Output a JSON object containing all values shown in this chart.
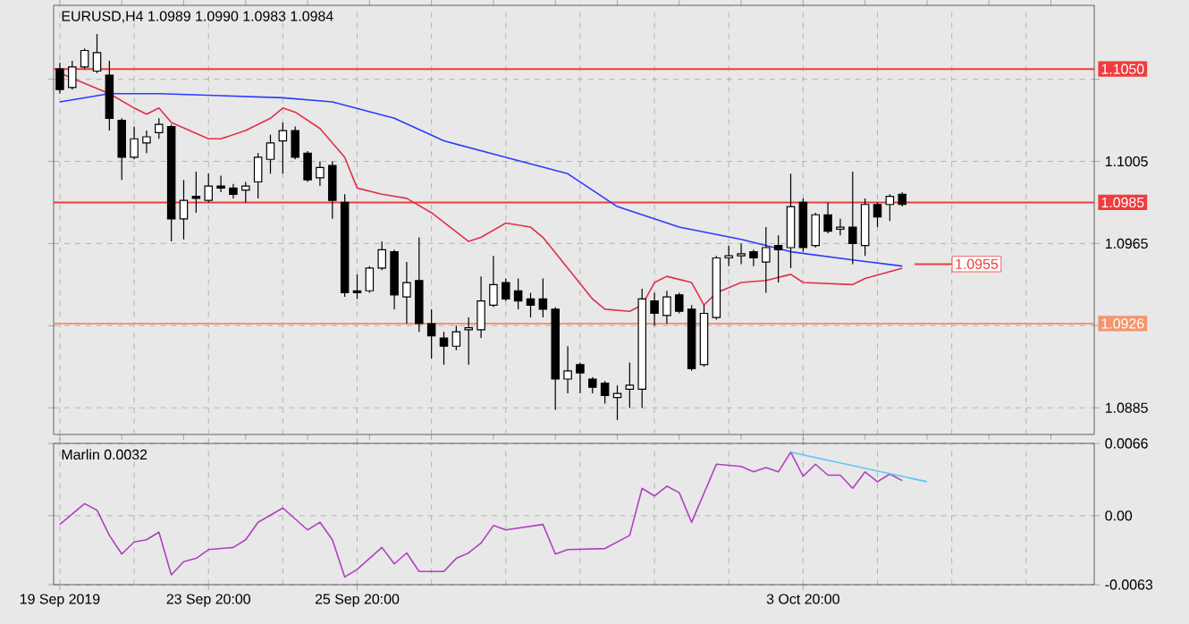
{
  "chart_data": [
    {
      "type": "candlestick",
      "title": "EURUSD,H4 1.0989 1.0990 1.0983 1.0984",
      "categories": [
        null,
        null,
        null,
        null,
        null,
        null,
        null,
        null,
        null,
        null,
        null,
        null,
        null,
        null,
        null,
        null,
        null,
        null,
        null,
        null,
        null,
        null,
        null,
        null,
        null,
        null,
        null,
        null,
        null,
        null,
        null,
        null,
        null,
        null,
        null,
        null,
        null,
        null,
        null,
        null,
        null,
        null,
        null,
        null,
        null,
        null,
        null,
        null,
        null,
        null,
        null,
        null,
        null,
        null,
        null,
        null,
        null,
        null,
        null,
        null,
        null,
        null,
        null,
        null,
        null,
        null,
        null,
        null,
        null,
        null,
        null,
        null,
        null,
        null,
        null,
        null,
        null,
        null,
        null,
        null,
        null,
        null,
        null,
        null
      ],
      "ohlc": [
        [
          1.105,
          1.1053,
          1.1038,
          1.104
        ],
        [
          1.1041,
          1.1054,
          1.104,
          1.1051
        ],
        [
          1.1051,
          1.106,
          1.105,
          1.1059
        ],
        [
          1.1049,
          1.1067,
          1.1048,
          1.1058
        ],
        [
          1.1047,
          1.1054,
          1.102,
          1.1026
        ],
        [
          1.1025,
          1.1026,
          1.0996,
          1.1007
        ],
        [
          1.1007,
          1.1022,
          1.1006,
          1.1016
        ],
        [
          1.1014,
          1.102,
          1.1009,
          1.1017
        ],
        [
          1.1019,
          1.1026,
          1.1016,
          1.1023
        ],
        [
          1.1022,
          1.1023,
          1.0966,
          1.0977
        ],
        [
          1.0977,
          1.0996,
          1.0967,
          1.0986
        ],
        [
          1.0988,
          1.1,
          1.098,
          1.0987
        ],
        [
          1.0986,
          1.0999,
          1.0985,
          1.0993
        ],
        [
          1.0993,
          1.0998,
          1.099,
          1.0992
        ],
        [
          1.0992,
          1.0994,
          1.0987,
          1.0989
        ],
        [
          1.0991,
          1.0995,
          1.0985,
          1.0993
        ],
        [
          1.0995,
          1.1009,
          1.0987,
          1.1007
        ],
        [
          1.1006,
          1.1018,
          1.0999,
          1.1014
        ],
        [
          1.1015,
          1.1024,
          1.0999,
          1.102
        ],
        [
          1.102,
          1.1022,
          1.1006,
          1.1007
        ],
        [
          1.1009,
          1.101,
          1.0995,
          1.0996
        ],
        [
          1.0997,
          1.1005,
          1.0993,
          1.1002
        ],
        [
          1.1003,
          1.1005,
          1.0977,
          1.0986
        ],
        [
          1.0985,
          1.0989,
          1.0939,
          1.0941
        ],
        [
          1.0942,
          1.095,
          1.0938,
          1.0941
        ],
        [
          1.0942,
          1.0954,
          1.0941,
          1.0953
        ],
        [
          1.0953,
          1.0966,
          1.0952,
          1.0962
        ],
        [
          1.0961,
          1.0962,
          1.0933,
          1.094
        ],
        [
          1.0939,
          1.0956,
          1.0926,
          1.0946
        ],
        [
          1.0947,
          1.0968,
          1.0922,
          1.0926
        ],
        [
          1.0926,
          1.0933,
          1.0909,
          1.092
        ],
        [
          1.0919,
          1.0922,
          1.0906,
          1.0915
        ],
        [
          1.0915,
          1.0925,
          1.0913,
          1.0922
        ],
        [
          1.0923,
          1.0929,
          1.0906,
          1.0924
        ],
        [
          1.0923,
          1.0949,
          1.0919,
          1.0937
        ],
        [
          1.0935,
          1.0959,
          1.0934,
          1.0945
        ],
        [
          1.0946,
          1.0948,
          1.0937,
          1.0938
        ],
        [
          1.0942,
          1.0948,
          1.0933,
          1.0937
        ],
        [
          1.0938,
          1.0941,
          1.0929,
          1.0935
        ],
        [
          1.0938,
          1.0948,
          1.0929,
          1.0933
        ],
        [
          1.0933,
          1.0934,
          1.0884,
          1.0899
        ],
        [
          1.0899,
          1.0915,
          1.0892,
          1.0903
        ],
        [
          1.0906,
          1.0907,
          1.0892,
          1.0902
        ],
        [
          1.0899,
          1.09,
          1.0892,
          1.0895
        ],
        [
          1.0897,
          1.0898,
          1.0887,
          1.0891
        ],
        [
          1.089,
          1.0896,
          1.0879,
          1.0892
        ],
        [
          1.0894,
          1.0907,
          1.0885,
          1.0896
        ],
        [
          1.0894,
          1.0943,
          1.0885,
          1.0938
        ],
        [
          1.0937,
          1.0941,
          1.0925,
          1.0931
        ],
        [
          1.093,
          1.0942,
          1.0926,
          1.0939
        ],
        [
          1.094,
          1.0941,
          1.0931,
          1.0932
        ],
        [
          1.0933,
          1.0935,
          1.0903,
          1.0904
        ],
        [
          1.0906,
          1.0935,
          1.0905,
          1.0931
        ],
        [
          1.0929,
          1.0959,
          1.0928,
          1.0958
        ],
        [
          1.0958,
          1.0964,
          1.0954,
          1.0959
        ],
        [
          1.0959,
          1.0965,
          1.0955,
          1.096
        ],
        [
          1.0961,
          1.0962,
          1.0954,
          1.0958
        ],
        [
          1.0956,
          1.0973,
          1.0941,
          1.0963
        ],
        [
          1.0964,
          1.0969,
          1.0946,
          1.0962
        ],
        [
          1.0963,
          1.0999,
          1.0953,
          1.0983
        ],
        [
          1.0985,
          1.0987,
          1.0961,
          1.0963
        ],
        [
          1.0964,
          1.098,
          1.0963,
          1.0979
        ],
        [
          1.0979,
          1.0985,
          1.097,
          1.0971
        ],
        [
          1.0972,
          1.0977,
          1.0969,
          1.0973
        ],
        [
          1.0973,
          1.1,
          1.0955,
          1.0965
        ],
        [
          1.0964,
          1.0987,
          1.0959,
          1.0984
        ],
        [
          1.0984,
          1.0985,
          1.0973,
          1.0978
        ],
        [
          1.0984,
          1.0989,
          1.0976,
          1.0988
        ],
        [
          1.0989,
          1.099,
          1.0983,
          1.0984
        ],
        null,
        null,
        null,
        null,
        null,
        null,
        null,
        null,
        null,
        null,
        null,
        null,
        null,
        null,
        null
      ],
      "series": [
        {
          "type": "line",
          "color": "#e0304a",
          "values": [
            1.1048,
            null,
            null,
            null,
            1.1038,
            null,
            1.1031,
            1.1028,
            1.1031,
            1.1024,
            null,
            null,
            1.1016,
            1.1016,
            null,
            1.102,
            null,
            1.1026,
            1.1031,
            1.1029,
            null,
            1.1021,
            null,
            1.1007,
            1.0992,
            null,
            1.0989,
            null,
            1.0987,
            null,
            1.098,
            null,
            null,
            1.0966,
            1.0968,
            null,
            1.0975,
            null,
            1.0973,
            1.0968,
            null,
            1.0953,
            null,
            1.0938,
            1.0933,
            null,
            1.0932,
            1.0935,
            1.0946,
            1.0949,
            null,
            1.0946,
            1.0935,
            1.0941,
            null,
            1.0946,
            null,
            1.0947,
            null,
            1.095,
            1.0946,
            null,
            null,
            null,
            1.0945,
            1.0948,
            null,
            null,
            1.0953,
            null,
            null,
            null,
            null,
            null,
            null,
            null,
            null,
            null,
            null,
            null,
            null,
            null,
            null,
            null
          ]
        },
        {
          "type": "line",
          "color": "#2b3bff",
          "values": [
            1.1034,
            null,
            null,
            null,
            1.1038,
            null,
            null,
            null,
            1.1038,
            null,
            null,
            null,
            null,
            1.1037,
            null,
            null,
            null,
            null,
            1.1036,
            null,
            null,
            null,
            1.1034,
            null,
            null,
            null,
            null,
            1.1026,
            null,
            null,
            null,
            1.1015,
            null,
            null,
            null,
            null,
            1.1007,
            null,
            null,
            null,
            null,
            1.0999,
            null,
            null,
            null,
            1.0983,
            null,
            null,
            null,
            null,
            1.0973,
            null,
            null,
            null,
            null,
            1.0967,
            null,
            null,
            null,
            1.0961,
            null,
            null,
            null,
            null,
            1.0957,
            null,
            null,
            null,
            1.0954,
            null,
            null,
            null,
            null,
            null,
            null,
            null,
            null,
            null,
            null,
            null,
            null,
            null,
            null,
            null
          ]
        }
      ],
      "ylim": [
        1.0872,
        1.1081
      ],
      "yticks": [
        {
          "value": 1.1045,
          "label": null
        },
        1.1005,
        1.0965,
        {
          "value": 1.0925,
          "label": null
        },
        1.0885
      ],
      "grid": true,
      "ref_lines": [
        {
          "axis": "y",
          "value": 1.105,
          "label": "1.1050",
          "color": "#f03c3c"
        },
        {
          "axis": "y",
          "value": 1.0985,
          "label": "1.0985",
          "color": "#f03c3c"
        },
        {
          "axis": "y",
          "value": 1.0926,
          "label": "1.0926",
          "color": "#f5956e"
        }
      ],
      "annotations": [
        {
          "text": "1.0955",
          "y": 1.0955
        }
      ]
    },
    {
      "type": "line",
      "title": "Marlin 0.0032",
      "categories": [
        "19 Sep 2019",
        null,
        null,
        null,
        null,
        null,
        null,
        null,
        null,
        null,
        null,
        null,
        "23 Sep 20:00",
        null,
        null,
        null,
        null,
        null,
        null,
        null,
        null,
        null,
        null,
        null,
        "25 Sep 20:00",
        null,
        null,
        null,
        null,
        null,
        null,
        null,
        null,
        null,
        null,
        null,
        null,
        null,
        null,
        null,
        null,
        null,
        null,
        null,
        null,
        null,
        null,
        null,
        null,
        null,
        null,
        null,
        null,
        null,
        null,
        null,
        null,
        null,
        null,
        null,
        "3 Oct 20:00",
        null,
        null,
        null,
        null,
        null,
        null,
        null,
        null,
        null,
        null,
        null,
        null,
        null,
        null,
        null,
        null,
        null,
        null,
        null,
        null,
        null,
        null,
        null
      ],
      "series": [
        {
          "color": "#b040c0",
          "values": [
            -0.0008,
            null,
            0.0011,
            0.0005,
            -0.0018,
            -0.0035,
            -0.0024,
            -0.0022,
            -0.0015,
            -0.0054,
            -0.0042,
            -0.0039,
            -0.0031,
            null,
            -0.0029,
            -0.0022,
            -0.0006,
            null,
            0.0007,
            null,
            -0.0013,
            -0.0006,
            -0.0022,
            -0.0056,
            -0.0049,
            null,
            -0.0029,
            -0.0044,
            -0.0034,
            -0.0051,
            null,
            -0.0051,
            -0.0039,
            -0.0034,
            -0.0025,
            -0.0009,
            -0.0013,
            null,
            null,
            -0.0008,
            -0.0035,
            -0.0031,
            null,
            null,
            -0.003,
            null,
            -0.0018,
            0.0025,
            0.0018,
            0.0027,
            0.0021,
            -0.0006,
            null,
            0.0047,
            null,
            0.0045,
            0.004,
            0.0044,
            0.004,
            0.0058,
            0.0036,
            0.0047,
            0.0037,
            0.0037,
            0.0025,
            0.004,
            0.0031,
            0.0038,
            0.0032,
            null,
            null,
            null,
            null,
            null,
            null,
            null,
            null,
            null,
            null,
            null,
            null,
            null,
            null,
            null
          ]
        },
        {
          "color": "#5ac8f5",
          "values": [
            null,
            null,
            null,
            null,
            null,
            null,
            null,
            null,
            null,
            null,
            null,
            null,
            null,
            null,
            null,
            null,
            null,
            null,
            null,
            null,
            null,
            null,
            null,
            null,
            null,
            null,
            null,
            null,
            null,
            null,
            null,
            null,
            null,
            null,
            null,
            null,
            null,
            null,
            null,
            null,
            null,
            null,
            null,
            null,
            null,
            null,
            null,
            null,
            null,
            null,
            null,
            null,
            null,
            null,
            null,
            null,
            null,
            null,
            null,
            0.0058,
            null,
            null,
            null,
            null,
            null,
            null,
            null,
            null,
            null,
            null,
            0.0031,
            null,
            null,
            null,
            null,
            null,
            null,
            null,
            null,
            null,
            null,
            null,
            null,
            null
          ]
        }
      ],
      "ylim": [
        -0.0063,
        0.0066
      ],
      "yticks": [
        0.0066,
        {
          "value": 0,
          "label": "0.00"
        },
        -0.0063
      ],
      "grid": true
    }
  ]
}
